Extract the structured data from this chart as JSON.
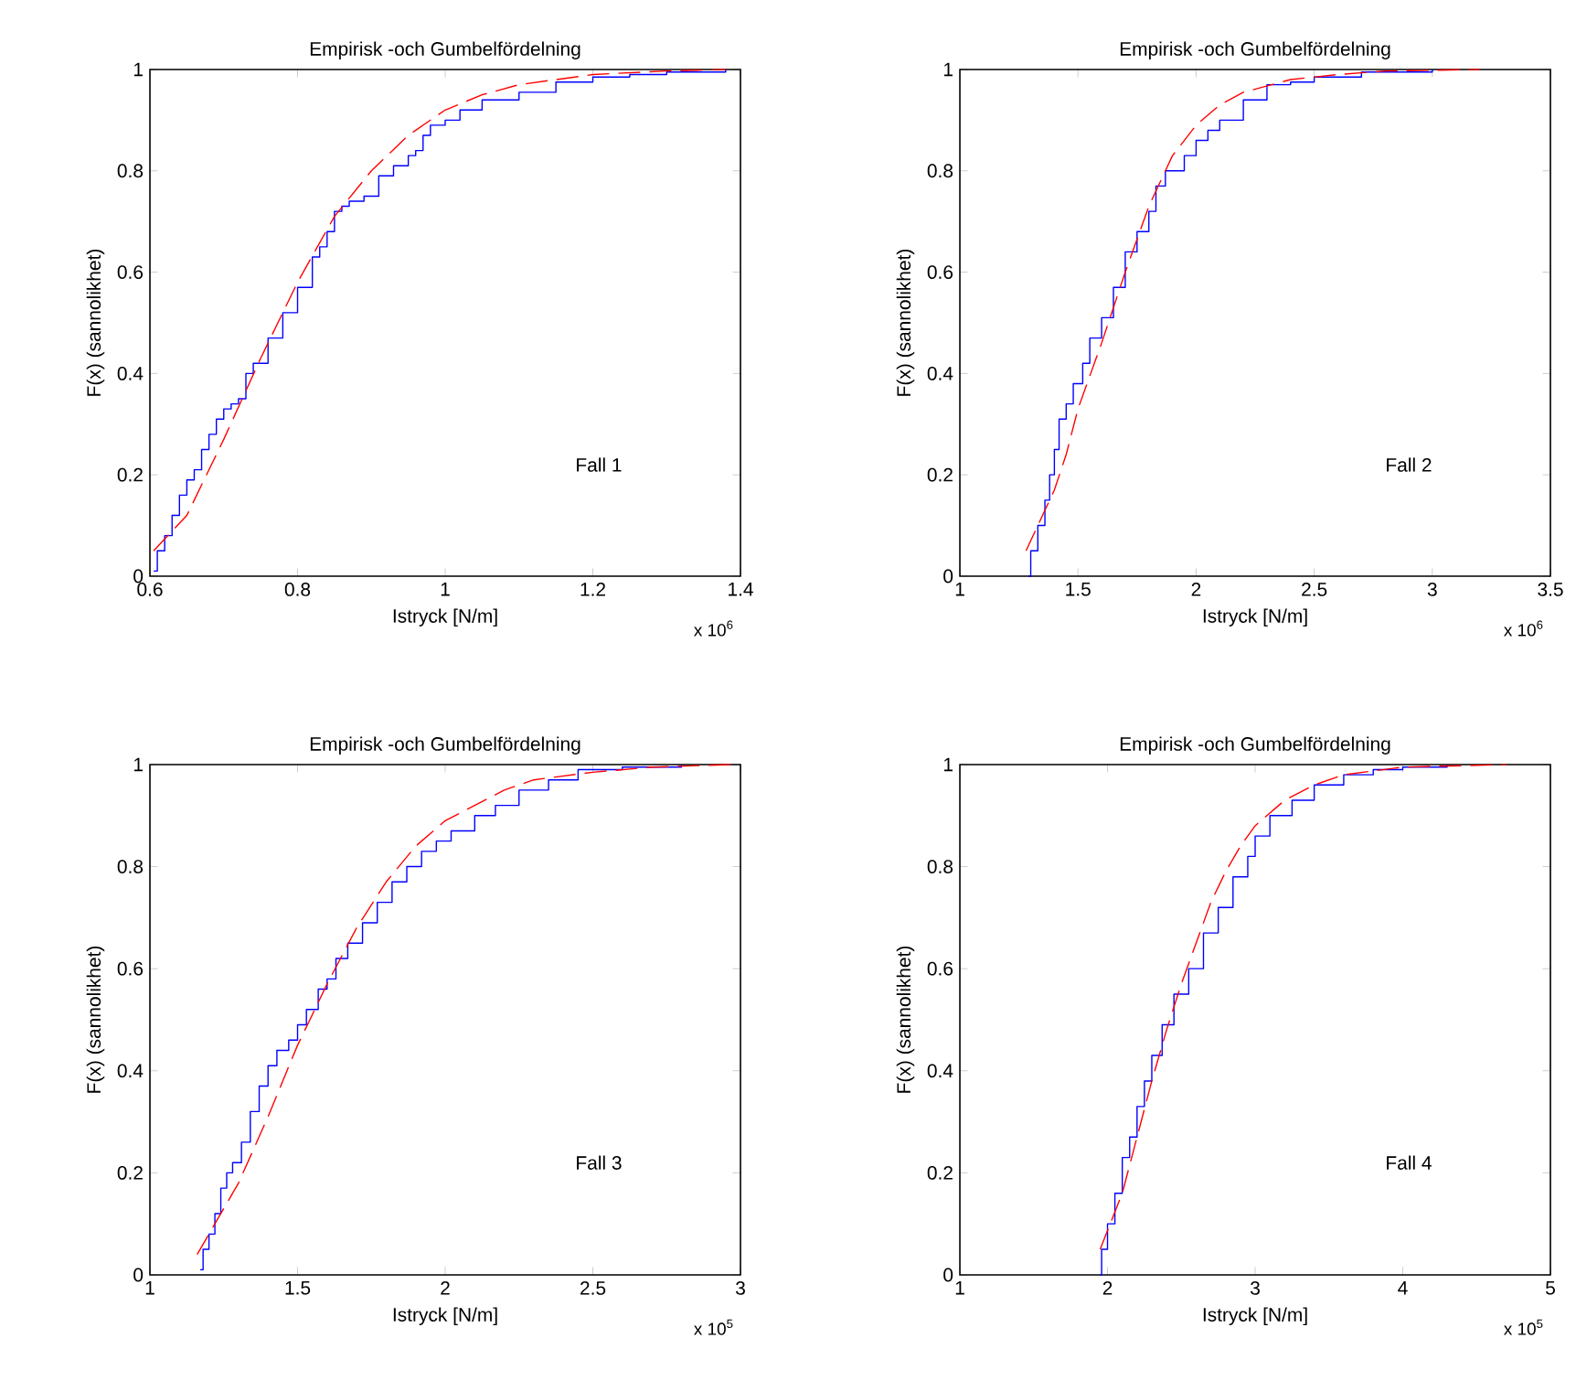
{
  "chart_data": [
    {
      "type": "step",
      "title": "Empirisk -och Gumbelfördelning",
      "xlabel": "Istryck [N/m]",
      "ylabel": "F(x) (sannolikhet)",
      "annotations": [
        "Fall 1",
        "x 10$^{6}$"
      ],
      "xlim": [
        0.6,
        1.4
      ],
      "ylim": [
        0,
        1
      ],
      "xticks": [
        0.6,
        0.8,
        1,
        1.2,
        1.4
      ],
      "yticks": [
        0,
        0.2,
        0.4,
        0.6,
        0.8,
        1
      ],
      "series": [
        {
          "color": "#0000ff",
          "line_style": "solid",
          "x": [
            0.605,
            0.61,
            0.62,
            0.63,
            0.64,
            0.65,
            0.66,
            0.67,
            0.68,
            0.69,
            0.7,
            0.71,
            0.72,
            0.73,
            0.74,
            0.76,
            0.78,
            0.8,
            0.82,
            0.83,
            0.84,
            0.85,
            0.86,
            0.87,
            0.89,
            0.91,
            0.93,
            0.95,
            0.96,
            0.97,
            0.98,
            1.0,
            1.02,
            1.05,
            1.1,
            1.15,
            1.2,
            1.25,
            1.3,
            1.38
          ],
          "values": [
            0.01,
            0.05,
            0.08,
            0.12,
            0.16,
            0.19,
            0.21,
            0.25,
            0.28,
            0.31,
            0.33,
            0.34,
            0.35,
            0.4,
            0.42,
            0.47,
            0.52,
            0.57,
            0.63,
            0.65,
            0.68,
            0.72,
            0.73,
            0.74,
            0.75,
            0.79,
            0.81,
            0.83,
            0.84,
            0.87,
            0.89,
            0.9,
            0.92,
            0.94,
            0.955,
            0.975,
            0.985,
            0.99,
            0.995,
            1.0
          ]
        },
        {
          "type": "line",
          "color": "#ff0000",
          "line_style": "dashed",
          "x": [
            0.605,
            0.65,
            0.7,
            0.75,
            0.8,
            0.85,
            0.9,
            0.95,
            1.0,
            1.05,
            1.1,
            1.2,
            1.3,
            1.38
          ],
          "values": [
            0.05,
            0.12,
            0.27,
            0.43,
            0.58,
            0.71,
            0.8,
            0.87,
            0.92,
            0.95,
            0.97,
            0.99,
            0.997,
            1.0
          ]
        }
      ]
    },
    {
      "type": "step",
      "title": "Empirisk -och Gumbelfördelning",
      "xlabel": "Istryck [N/m]",
      "ylabel": "F(x) (sannolikhet)",
      "annotations": [
        "Fall 2",
        "x 10$^{6}$"
      ],
      "xlim": [
        1,
        3.5
      ],
      "ylim": [
        0,
        1
      ],
      "xticks": [
        1,
        1.5,
        2,
        2.5,
        3,
        3.5
      ],
      "yticks": [
        0,
        0.2,
        0.4,
        0.6,
        0.8,
        1
      ],
      "series": [
        {
          "color": "#0000ff",
          "line_style": "solid",
          "x": [
            1.29,
            1.3,
            1.33,
            1.36,
            1.38,
            1.4,
            1.42,
            1.45,
            1.48,
            1.52,
            1.55,
            1.6,
            1.65,
            1.7,
            1.75,
            1.8,
            1.83,
            1.87,
            1.95,
            2.0,
            2.05,
            2.1,
            2.2,
            2.3,
            2.4,
            2.5,
            2.7,
            3.0
          ],
          "values": [
            0.0,
            0.05,
            0.1,
            0.15,
            0.2,
            0.25,
            0.31,
            0.34,
            0.38,
            0.42,
            0.47,
            0.51,
            0.57,
            0.64,
            0.68,
            0.72,
            0.77,
            0.8,
            0.83,
            0.86,
            0.88,
            0.9,
            0.94,
            0.97,
            0.975,
            0.985,
            0.995,
            1.0
          ]
        },
        {
          "type": "line",
          "color": "#ff0000",
          "line_style": "dashed",
          "x": [
            1.28,
            1.35,
            1.4,
            1.45,
            1.5,
            1.6,
            1.7,
            1.8,
            1.9,
            2.0,
            2.1,
            2.2,
            2.4,
            2.6,
            2.8,
            3.2
          ],
          "values": [
            0.05,
            0.12,
            0.17,
            0.24,
            0.33,
            0.46,
            0.6,
            0.73,
            0.83,
            0.89,
            0.93,
            0.955,
            0.98,
            0.99,
            0.997,
            1.0
          ]
        }
      ]
    },
    {
      "type": "step",
      "title": "Empirisk -och Gumbelfördelning",
      "xlabel": "Istryck [N/m]",
      "ylabel": "F(x) (sannolikhet)",
      "annotations": [
        "Fall 3",
        "x 10$^{5}$"
      ],
      "xlim": [
        1,
        3
      ],
      "ylim": [
        0,
        1
      ],
      "xticks": [
        1,
        1.5,
        2,
        2.5,
        3
      ],
      "yticks": [
        0,
        0.2,
        0.4,
        0.6,
        0.8,
        1
      ],
      "series": [
        {
          "color": "#0000ff",
          "line_style": "solid",
          "x": [
            1.17,
            1.18,
            1.2,
            1.22,
            1.24,
            1.26,
            1.28,
            1.31,
            1.34,
            1.37,
            1.4,
            1.43,
            1.47,
            1.5,
            1.53,
            1.57,
            1.6,
            1.63,
            1.67,
            1.72,
            1.77,
            1.82,
            1.87,
            1.92,
            1.97,
            2.02,
            2.1,
            2.17,
            2.25,
            2.35,
            2.45,
            2.6,
            2.8
          ],
          "values": [
            0.01,
            0.05,
            0.08,
            0.12,
            0.17,
            0.2,
            0.22,
            0.26,
            0.32,
            0.37,
            0.41,
            0.44,
            0.46,
            0.49,
            0.52,
            0.56,
            0.58,
            0.62,
            0.65,
            0.69,
            0.73,
            0.77,
            0.8,
            0.83,
            0.85,
            0.87,
            0.9,
            0.92,
            0.95,
            0.97,
            0.99,
            0.995,
            1.0
          ]
        },
        {
          "type": "line",
          "color": "#ff0000",
          "line_style": "dashed",
          "x": [
            1.16,
            1.2,
            1.3,
            1.4,
            1.5,
            1.6,
            1.7,
            1.8,
            1.9,
            2.0,
            2.1,
            2.2,
            2.3,
            2.5,
            2.7,
            2.97
          ],
          "values": [
            0.04,
            0.08,
            0.18,
            0.31,
            0.45,
            0.57,
            0.68,
            0.77,
            0.84,
            0.89,
            0.92,
            0.95,
            0.97,
            0.985,
            0.995,
            1.0
          ]
        }
      ]
    },
    {
      "type": "step",
      "title": "Empirisk -och Gumbelfördelning",
      "xlabel": "Istryck [N/m]",
      "ylabel": "F(x) (sannolikhet)",
      "annotations": [
        "Fall 4",
        "x 10$^{5}$"
      ],
      "xlim": [
        1,
        5
      ],
      "ylim": [
        0,
        1
      ],
      "xticks": [
        1,
        2,
        3,
        4,
        5
      ],
      "yticks": [
        0,
        0.2,
        0.4,
        0.6,
        0.8,
        1
      ],
      "series": [
        {
          "color": "#0000ff",
          "line_style": "solid",
          "x": [
            1.95,
            1.96,
            2.0,
            2.05,
            2.1,
            2.15,
            2.2,
            2.25,
            2.3,
            2.37,
            2.45,
            2.55,
            2.65,
            2.75,
            2.85,
            2.95,
            3.0,
            3.1,
            3.25,
            3.4,
            3.6,
            3.8,
            4.0,
            4.3
          ],
          "values": [
            0.0,
            0.05,
            0.1,
            0.16,
            0.23,
            0.27,
            0.33,
            0.38,
            0.43,
            0.49,
            0.55,
            0.6,
            0.67,
            0.72,
            0.78,
            0.82,
            0.86,
            0.9,
            0.93,
            0.96,
            0.98,
            0.99,
            0.995,
            1.0
          ]
        },
        {
          "type": "line",
          "color": "#ff0000",
          "line_style": "dashed",
          "x": [
            1.95,
            2.1,
            2.2,
            2.3,
            2.4,
            2.5,
            2.6,
            2.7,
            2.8,
            2.9,
            3.0,
            3.2,
            3.4,
            3.6,
            4.0,
            4.7
          ],
          "values": [
            0.05,
            0.16,
            0.27,
            0.38,
            0.48,
            0.57,
            0.65,
            0.73,
            0.79,
            0.84,
            0.88,
            0.93,
            0.96,
            0.98,
            0.995,
            1.0
          ]
        }
      ]
    }
  ]
}
